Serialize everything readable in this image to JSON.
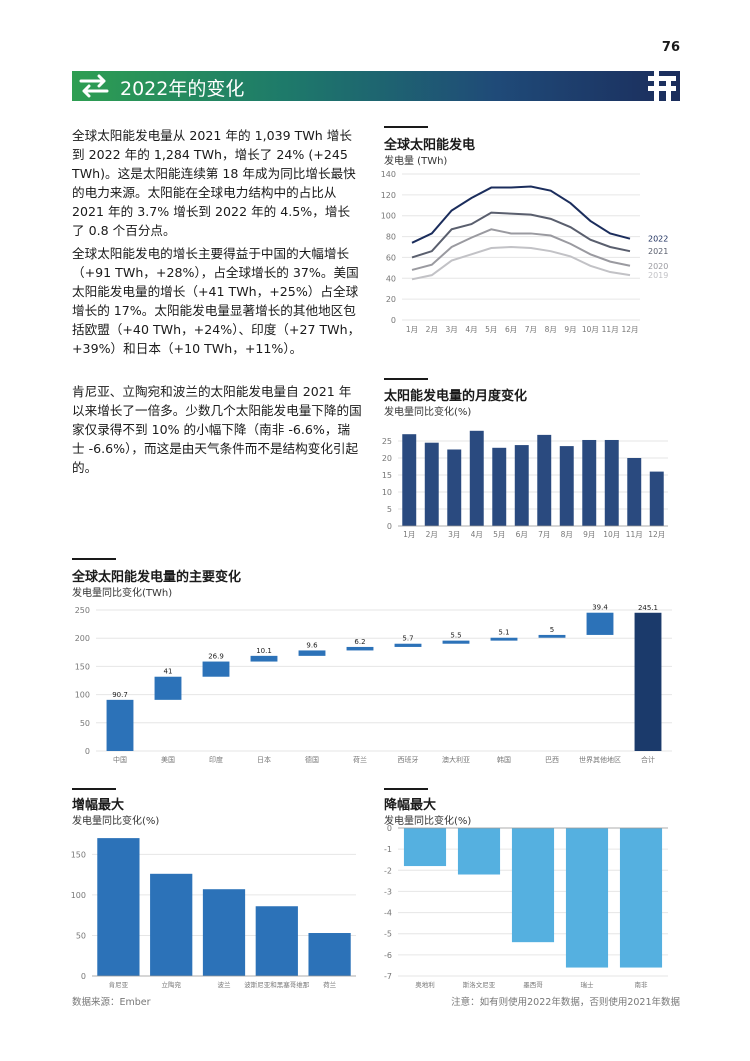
{
  "page_number": "76",
  "banner_title": "2022年的变化",
  "paragraphs": [
    "全球太阳能发电量从 2021 年的 1,039 TWh 增长到 2022 年的 1,284 TWh，增长了 24% (+245 TWh)。这是太阳能连续第 18 年成为同比增长最快的电力来源。太阳能在全球电力结构中的占比从 2021 年的 3.7% 增长到 2022 年的 4.5%，增长了 0.8 个百分点。",
    "全球太阳能发电的增长主要得益于中国的大幅增长（+91 TWh，+28%），占全球增长的 37%。美国太阳能发电量的增长（+41 TWh，+25%）占全球增长的 17%。太阳能发电量显著增长的其他地区包括欧盟（+40 TWh，+24%）、印度（+27 TWh，+39%）和日本（+10 TWh，+11%）。",
    "肯尼亚、立陶宛和波兰的太阳能发电量自 2021 年以来增长了一倍多。少数几个太阳能发电量下降的国家仅录得不到 10% 的小幅下降（南非 -6.6%，瑞士 -6.6%），而这是由天气条件而不是结构变化引起的。"
  ],
  "chart_data": [
    {
      "type": "line",
      "title": "全球太阳能发电",
      "ylabel": "发电量 (TWh)",
      "categories": [
        "1月",
        "2月",
        "3月",
        "4月",
        "5月",
        "6月",
        "7月",
        "8月",
        "9月",
        "10月",
        "11月",
        "12月"
      ],
      "ylim": [
        0,
        140
      ],
      "yticks": [
        0,
        20,
        40,
        60,
        80,
        100,
        120,
        140
      ],
      "series": [
        {
          "name": "2022",
          "color": "#1b2d5c",
          "values": [
            74,
            83,
            105,
            117,
            127,
            127,
            128,
            124,
            112,
            95,
            83,
            78
          ]
        },
        {
          "name": "2021",
          "color": "#5a5f6e",
          "values": [
            60,
            66,
            87,
            92,
            103,
            102,
            101,
            97,
            89,
            77,
            70,
            66
          ]
        },
        {
          "name": "2020",
          "color": "#9a9aa0",
          "values": [
            48,
            53,
            70,
            79,
            87,
            83,
            83,
            81,
            73,
            63,
            56,
            52
          ]
        },
        {
          "name": "2019",
          "color": "#c2c2c6",
          "values": [
            39,
            43,
            57,
            63,
            69,
            70,
            69,
            66,
            61,
            52,
            46,
            43
          ]
        }
      ]
    },
    {
      "type": "bar",
      "title": "太阳能发电量的月度变化",
      "ylabel": "发电量同比变化(%)",
      "categories": [
        "1月",
        "2月",
        "3月",
        "4月",
        "5月",
        "6月",
        "7月",
        "8月",
        "9月",
        "10月",
        "11月",
        "12月"
      ],
      "values": [
        27,
        24.5,
        22.5,
        28,
        23,
        23.8,
        26.8,
        23.5,
        25.3,
        25.3,
        20,
        16
      ],
      "ylim": [
        0,
        30
      ],
      "yticks": [
        0,
        5,
        10,
        15,
        20,
        25
      ],
      "color": "#2a4a7f"
    },
    {
      "type": "waterfall",
      "title": "全球太阳能发电量的主要变化",
      "ylabel": "发电量同比变化(TWh)",
      "categories": [
        "中国",
        "美国",
        "印度",
        "日本",
        "德国",
        "荷兰",
        "西班牙",
        "澳大利亚",
        "韩国",
        "巴西",
        "世界其他地区",
        "合计"
      ],
      "values": [
        90.7,
        41,
        26.9,
        10.1,
        9.6,
        6.2,
        5.7,
        5.5,
        5.1,
        5,
        39.4,
        245.1
      ],
      "labels": [
        "90.7",
        "41",
        "26.9",
        "10.1",
        "9.6",
        "6.2",
        "5.7",
        "5.5",
        "5.1",
        "5",
        "39.4",
        "245.1"
      ],
      "ylim": [
        0,
        250
      ],
      "yticks": [
        0,
        50,
        100,
        150,
        200,
        250
      ],
      "color": "#2c72b8",
      "total_color": "#1b3a6b"
    },
    {
      "type": "bar",
      "title": "增幅最大",
      "ylabel": "发电量同比变化(%)",
      "categories": [
        "肯尼亚",
        "立陶宛",
        "波兰",
        "波斯尼亚和黑塞哥维那",
        "荷兰"
      ],
      "values": [
        170,
        126,
        107,
        86,
        53
      ],
      "ylim": [
        0,
        180
      ],
      "yticks": [
        0,
        50,
        100,
        150
      ],
      "color": "#2c72b8"
    },
    {
      "type": "bar",
      "title": "降幅最大",
      "ylabel": "发电量同比变化(%)",
      "categories": [
        "奥地利",
        "斯洛文尼亚",
        "墨西哥",
        "瑞士",
        "南非"
      ],
      "values": [
        -1.8,
        -2.2,
        -5.4,
        -6.6,
        -6.6
      ],
      "ylim": [
        -7,
        0
      ],
      "yticks": [
        0,
        -1,
        -2,
        -3,
        -4,
        -5,
        -6,
        -7
      ],
      "color": "#55b0e0"
    }
  ],
  "footer_source": "数据来源：Ember",
  "footer_note": "注意：如有则使用2022年数据，否则使用2021年数据"
}
